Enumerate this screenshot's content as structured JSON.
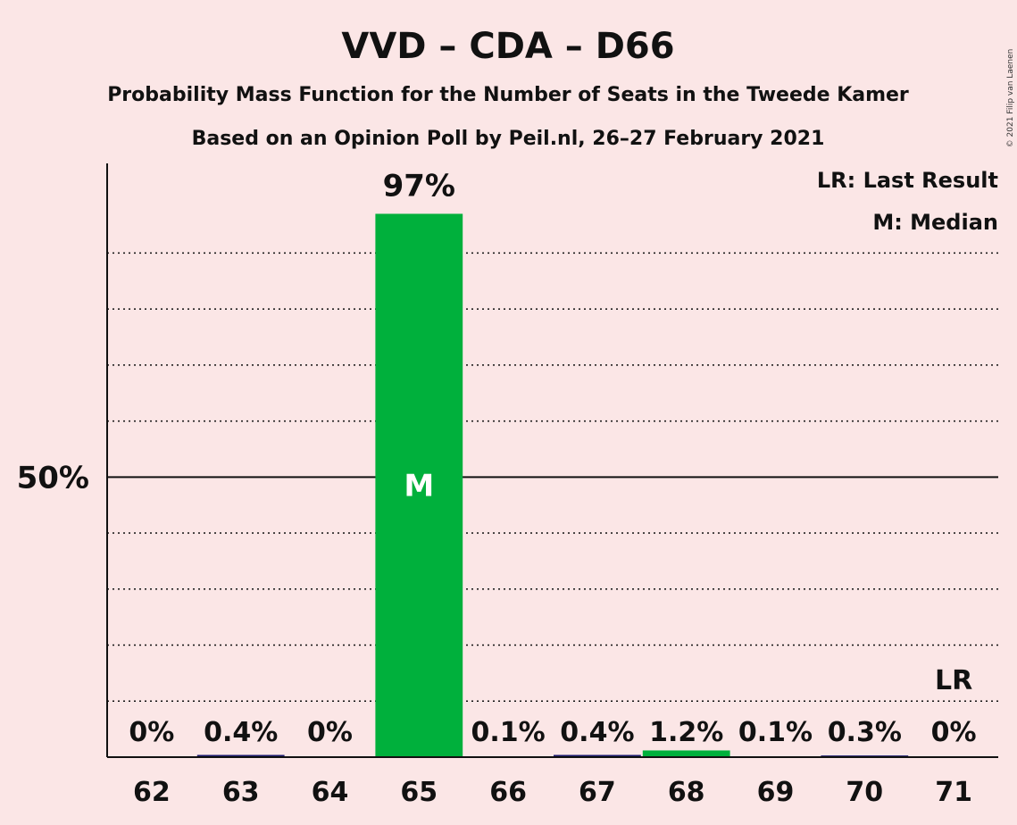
{
  "chart_data": {
    "type": "bar",
    "title": "VVD – CDA – D66",
    "subtitle": "Probability Mass Function for the Number of Seats in the Tweede Kamer",
    "subtitle2": "Based on an Opinion Poll by Peil.nl, 26–27 February 2021",
    "copyright": "© 2021 Filip van Laenen",
    "legend": {
      "placement": "top-right",
      "entries": [
        "LR: Last Result",
        "M: Median"
      ]
    },
    "categories": [
      "62",
      "63",
      "64",
      "65",
      "66",
      "67",
      "68",
      "69",
      "70",
      "71"
    ],
    "values": [
      0,
      0.4,
      0,
      97,
      0.1,
      0.4,
      1.2,
      0.1,
      0.3,
      0
    ],
    "data_labels": [
      "0%",
      "0.4%",
      "0%",
      "97%",
      "0.1%",
      "0.4%",
      "1.2%",
      "0.1%",
      "0.3%",
      "0%"
    ],
    "median_category": "65",
    "median_marker": "M",
    "last_result_category": "71",
    "last_result_marker": "LR",
    "y_tick_labels": [
      {
        "value": 50,
        "label": "50%"
      }
    ],
    "ylim": [
      0,
      106
    ],
    "gridlines_dotted_every": 10,
    "grid": true,
    "xlabel": "",
    "ylabel": "",
    "colors": {
      "background": "#fbe6e6",
      "bar": "#00b03c",
      "small_bar": "#1a1a6e",
      "text": "#111111"
    }
  }
}
